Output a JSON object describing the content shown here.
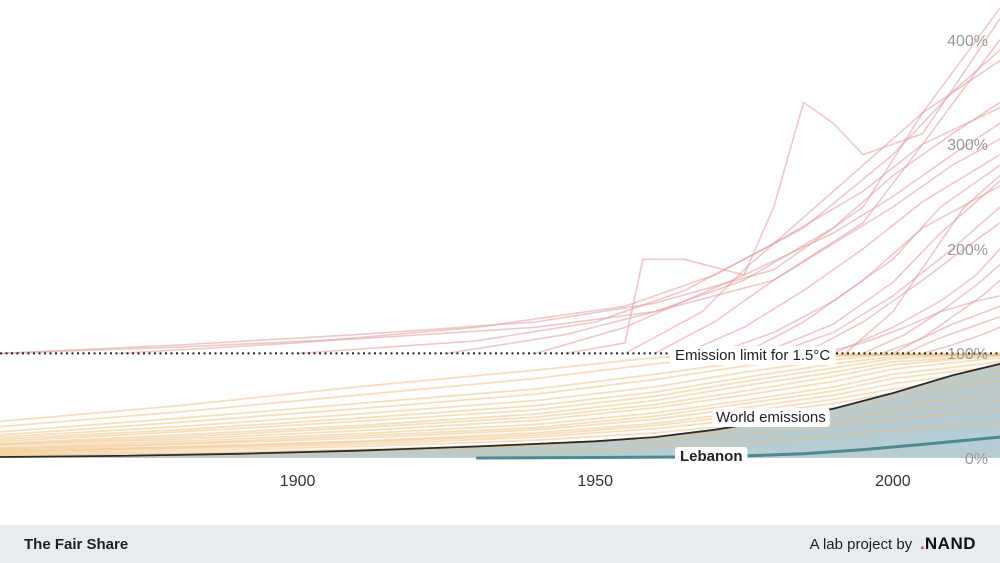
{
  "colors": {
    "over_limit": "#e69a9a",
    "under_limit": "#f2c07a",
    "world_fill": "#a9c4cd",
    "world_line": "#2b2b2b",
    "country_line": "#4a8c8d",
    "limit_line": "#222222",
    "logo_dot": "#e0453a"
  },
  "chart_data": {
    "type": "line",
    "x_ticks": [
      1900,
      1950,
      2000
    ],
    "y_ticks": [
      {
        "value": 0,
        "label": "0%"
      },
      {
        "value": 100,
        "label": "100%"
      },
      {
        "value": 200,
        "label": "200%"
      },
      {
        "value": 300,
        "label": "300%"
      },
      {
        "value": 400,
        "label": "400%"
      }
    ],
    "xlim": [
      1850,
      2018
    ],
    "ylim": [
      0,
      435
    ],
    "limit": {
      "value": 100,
      "label": "Emission limit for 1.5°C"
    },
    "world": {
      "name": "World emissions",
      "x": [
        1850,
        1870,
        1890,
        1910,
        1930,
        1950,
        1960,
        1970,
        1980,
        1990,
        2000,
        2010,
        2018
      ],
      "y": [
        1,
        2,
        4,
        7,
        11,
        16,
        20,
        27,
        36,
        47,
        62,
        79,
        90
      ]
    },
    "highlight": {
      "name": "Lebanon",
      "x": [
        1930,
        1950,
        1965,
        1975,
        1985,
        1995,
        2005,
        2018
      ],
      "y": [
        0,
        0.5,
        1,
        2,
        4,
        8,
        13,
        20
      ]
    },
    "series": [
      {
        "x": [
          1850,
          1880,
          1910,
          1940,
          1960,
          1975,
          1990,
          2000,
          2018
        ],
        "y": [
          2,
          4,
          7,
          11,
          16,
          22,
          30,
          37,
          46
        ]
      },
      {
        "x": [
          1850,
          1880,
          1910,
          1940,
          1960,
          1975,
          1990,
          2000,
          2018
        ],
        "y": [
          4,
          7,
          11,
          17,
          24,
          32,
          42,
          50,
          60
        ]
      },
      {
        "x": [
          1850,
          1880,
          1910,
          1940,
          1960,
          1975,
          1990,
          2000,
          2018
        ],
        "y": [
          6,
          10,
          15,
          22,
          31,
          41,
          52,
          62,
          74
        ]
      },
      {
        "x": [
          1850,
          1880,
          1910,
          1940,
          1960,
          1975,
          1990,
          2000,
          2018
        ],
        "y": [
          8,
          13,
          19,
          27,
          37,
          48,
          60,
          71,
          84
        ]
      },
      {
        "x": [
          1850,
          1880,
          1910,
          1940,
          1960,
          1975,
          1990,
          2000,
          2018
        ],
        "y": [
          10,
          16,
          23,
          32,
          43,
          55,
          68,
          80,
          92
        ]
      },
      {
        "x": [
          1850,
          1880,
          1910,
          1940,
          1960,
          1975,
          1990,
          2000,
          2018
        ],
        "y": [
          13,
          20,
          29,
          39,
          51,
          64,
          78,
          89,
          98
        ]
      },
      {
        "x": [
          1850,
          1880,
          1910,
          1940,
          1960,
          1975,
          1990,
          2000,
          2018
        ],
        "y": [
          16,
          25,
          35,
          46,
          59,
          73,
          86,
          95,
          99
        ]
      },
      {
        "x": [
          1850,
          1880,
          1910,
          1940,
          1960,
          1975,
          1990,
          2000,
          2018
        ],
        "y": [
          20,
          30,
          42,
          55,
          68,
          82,
          94,
          99,
          99
        ]
      },
      {
        "x": [
          1850,
          1880,
          1910,
          1940,
          1960,
          1975,
          1990,
          2000,
          2018
        ],
        "y": [
          3,
          5,
          8,
          13,
          19,
          27,
          36,
          44,
          54
        ]
      },
      {
        "x": [
          1850,
          1880,
          1910,
          1940,
          1960,
          1975,
          1990,
          2000,
          2018
        ],
        "y": [
          5,
          9,
          13,
          20,
          28,
          37,
          48,
          57,
          68
        ]
      },
      {
        "x": [
          1850,
          1880,
          1910,
          1940,
          1960,
          1975,
          1990,
          2000,
          2018
        ],
        "y": [
          9,
          14,
          21,
          29,
          40,
          52,
          64,
          76,
          88
        ]
      },
      {
        "x": [
          1850,
          1880,
          1910,
          1940,
          1960,
          1975,
          1990,
          2000,
          2018
        ],
        "y": [
          12,
          18,
          26,
          36,
          48,
          60,
          73,
          85,
          96
        ]
      },
      {
        "x": [
          1850,
          1880,
          1910,
          1940,
          1960,
          1975,
          1990,
          2000,
          2018
        ],
        "y": [
          25,
          38,
          52,
          66,
          80,
          92,
          98,
          99,
          99
        ]
      },
      {
        "x": [
          1850,
          1880,
          1910,
          1940,
          1960,
          1975,
          1990,
          2000,
          2018
        ],
        "y": [
          30,
          44,
          60,
          76,
          90,
          98,
          99,
          99,
          99
        ]
      },
      {
        "x": [
          1850,
          1880,
          1910,
          1940,
          1960,
          1975,
          1990,
          2000,
          2018
        ],
        "y": [
          1,
          2,
          4,
          6,
          10,
          15,
          21,
          27,
          34
        ]
      },
      {
        "x": [
          1850,
          1880,
          1910,
          1940,
          1960,
          1975,
          1990,
          2000,
          2018
        ],
        "y": [
          7,
          11,
          16,
          24,
          33,
          44,
          56,
          66,
          78
        ]
      },
      {
        "x": [
          1850,
          1880,
          1910,
          1940,
          1960,
          1975,
          1990,
          2000,
          2018
        ],
        "y": [
          18,
          27,
          38,
          50,
          63,
          77,
          90,
          97,
          99
        ]
      },
      {
        "x": [
          1850,
          1880,
          1910,
          1940,
          1960,
          1975,
          1990,
          2000,
          2018
        ],
        "y": [
          22,
          34,
          47,
          61,
          75,
          88,
          97,
          99,
          99
        ]
      },
      {
        "x": [
          1850,
          1880,
          1910,
          1940,
          1960,
          1975,
          1990,
          2000,
          2018
        ],
        "y": [
          14,
          22,
          31,
          42,
          55,
          69,
          82,
          92,
          98
        ]
      },
      {
        "x": [
          1850,
          1880,
          1910,
          1940,
          1960,
          1975,
          1990,
          2000,
          2018
        ],
        "y": [
          35,
          50,
          68,
          84,
          96,
          99,
          99,
          99,
          99
        ]
      },
      {
        "x": [
          1850,
          1880,
          1910,
          1940,
          1960,
          1980,
          1995,
          2005,
          2018
        ],
        "y": [
          100,
          108,
          118,
          130,
          148,
          180,
          240,
          330,
          430
        ]
      },
      {
        "x": [
          1850,
          1880,
          1910,
          1940,
          1960,
          1980,
          1995,
          2005,
          2018
        ],
        "y": [
          100,
          106,
          114,
          125,
          140,
          170,
          225,
          300,
          400
        ]
      },
      {
        "x": [
          1870,
          1900,
          1930,
          1955,
          1970,
          1985,
          2000,
          2010,
          2018
        ],
        "y": [
          100,
          110,
          125,
          145,
          175,
          220,
          290,
          350,
          390
        ]
      },
      {
        "x": [
          1900,
          1930,
          1950,
          1965,
          1980,
          1995,
          2005,
          2018
        ],
        "y": [
          100,
          112,
          130,
          160,
          205,
          255,
          300,
          335
        ]
      },
      {
        "x": [
          1925,
          1945,
          1960,
          1975,
          1990,
          2000,
          2010,
          2018
        ],
        "y": [
          100,
          118,
          140,
          170,
          220,
          270,
          310,
          340
        ]
      },
      {
        "x": [
          1940,
          1955,
          1965,
          1975,
          1990,
          2000,
          2010,
          2018
        ],
        "y": [
          100,
          125,
          150,
          175,
          215,
          250,
          290,
          320
        ]
      },
      {
        "x": [
          1960,
          1970,
          1980,
          1990,
          2000,
          2010,
          2018
        ],
        "y": [
          100,
          130,
          170,
          205,
          240,
          280,
          305
        ]
      },
      {
        "x": [
          1965,
          1975,
          1985,
          1995,
          2005,
          2018
        ],
        "y": [
          100,
          125,
          160,
          200,
          245,
          290
        ]
      },
      {
        "x": [
          1945,
          1955,
          1958,
          1965,
          1975,
          1980,
          1985,
          1990,
          1995,
          2005,
          2018
        ],
        "y": [
          100,
          110,
          190,
          190,
          175,
          240,
          340,
          320,
          290,
          310,
          420
        ]
      },
      {
        "x": [
          1955,
          1968,
          1975,
          1985,
          1995,
          2005,
          2018
        ],
        "y": [
          100,
          140,
          180,
          230,
          280,
          330,
          380
        ]
      },
      {
        "x": [
          1970,
          1980,
          1990,
          2000,
          2008,
          2018
        ],
        "y": [
          100,
          120,
          150,
          190,
          240,
          280
        ]
      },
      {
        "x": [
          1975,
          1985,
          1995,
          2005,
          2018
        ],
        "y": [
          100,
          130,
          170,
          220,
          260
        ]
      },
      {
        "x": [
          1980,
          1990,
          2000,
          2010,
          2018
        ],
        "y": [
          100,
          120,
          155,
          200,
          240
        ]
      },
      {
        "x": [
          1985,
          1995,
          2005,
          2012,
          2018
        ],
        "y": [
          100,
          130,
          170,
          200,
          225
        ]
      },
      {
        "x": [
          1990,
          2000,
          2008,
          2014,
          2018
        ],
        "y": [
          100,
          125,
          150,
          175,
          200
        ]
      },
      {
        "x": [
          1995,
          2002,
          2008,
          2014,
          2018
        ],
        "y": [
          100,
          118,
          140,
          165,
          185
        ]
      },
      {
        "x": [
          2000,
          2005,
          2010,
          2015,
          2018
        ],
        "y": [
          100,
          115,
          135,
          155,
          170
        ]
      },
      {
        "x": [
          1988,
          1995,
          2002,
          2008,
          2014,
          2018
        ],
        "y": [
          100,
          110,
          125,
          140,
          150,
          155
        ]
      },
      {
        "x": [
          1998,
          2004,
          2010,
          2018
        ],
        "y": [
          100,
          112,
          128,
          145
        ]
      },
      {
        "x": [
          2002,
          2008,
          2013,
          2018
        ],
        "y": [
          100,
          115,
          125,
          135
        ]
      },
      {
        "x": [
          2005,
          2010,
          2015,
          2018
        ],
        "y": [
          100,
          108,
          118,
          125
        ]
      },
      {
        "x": [
          1978,
          1990,
          2000,
          2008,
          2018
        ],
        "y": [
          100,
          128,
          168,
          215,
          265
        ]
      },
      {
        "x": [
          1992,
          2000,
          2006,
          2012,
          2018
        ],
        "y": [
          100,
          140,
          190,
          240,
          270
        ]
      }
    ]
  },
  "footer": {
    "brand": "The Fair Share",
    "credit": "A lab project by",
    "logo_dot": ".",
    "logo_text": "NAND"
  }
}
